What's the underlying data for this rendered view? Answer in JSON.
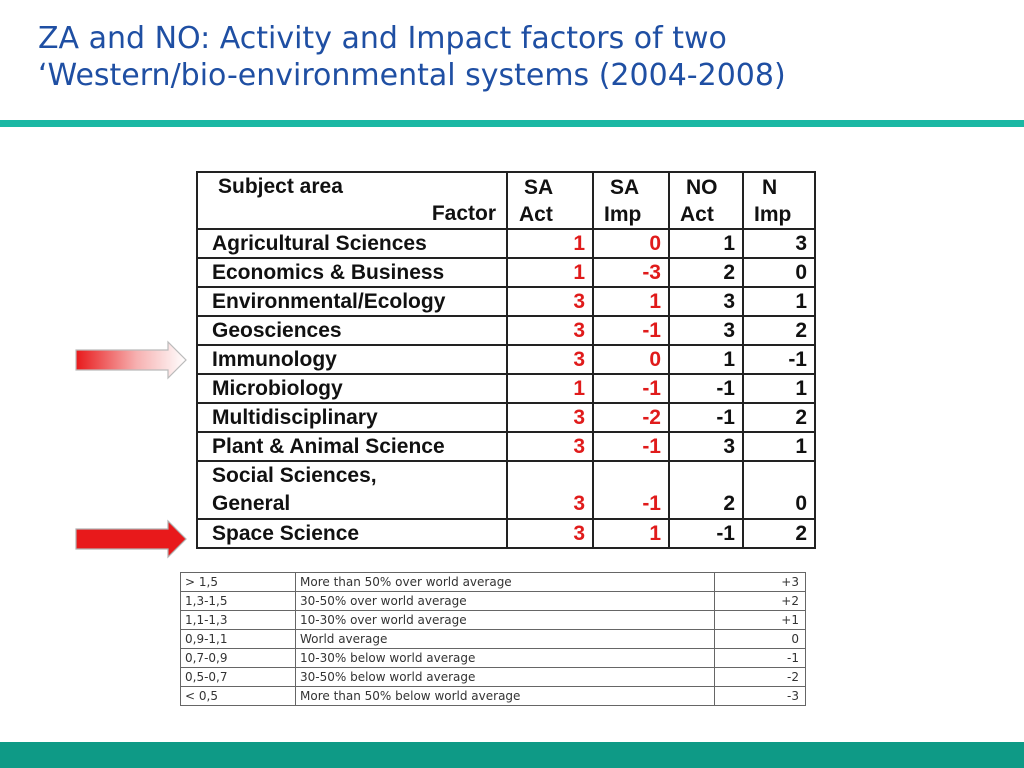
{
  "title": {
    "line1": "ZA and NO: Activity and Impact factors of two",
    "line2": "‘Western/bio-environmental systems (2004-2008)"
  },
  "colors": {
    "title": "#1f4fa3",
    "rule": "#1bb8a4",
    "band": "#0e9a86",
    "sa_values": "#e01b1b",
    "arrow": "#e8191b"
  },
  "main_table": {
    "header": {
      "subject_line1": "Subject area",
      "subject_line2": "Factor",
      "sa_act_line1": "SA",
      "sa_act_line2": "Act",
      "sa_imp_line1": "SA",
      "sa_imp_line2": "Imp",
      "no_act_line1": "NO",
      "no_act_line2": "Act",
      "n_imp_line1": "N",
      "n_imp_line2": "Imp"
    },
    "rows": [
      {
        "subject": "Agricultural Sciences",
        "sa_act": "1",
        "sa_imp": "0",
        "no_act": "1",
        "n_imp": "3"
      },
      {
        "subject": "Economics & Business",
        "sa_act": "1",
        "sa_imp": "-3",
        "no_act": "2",
        "n_imp": "0"
      },
      {
        "subject": "Environmental/Ecology",
        "sa_act": "3",
        "sa_imp": "1",
        "no_act": "3",
        "n_imp": "1"
      },
      {
        "subject": "Geosciences",
        "sa_act": "3",
        "sa_imp": "-1",
        "no_act": "3",
        "n_imp": "2"
      },
      {
        "subject": "Immunology",
        "sa_act": "3",
        "sa_imp": "0",
        "no_act": "1",
        "n_imp": "-1"
      },
      {
        "subject": "Microbiology",
        "sa_act": "1",
        "sa_imp": "-1",
        "no_act": "-1",
        "n_imp": "1"
      },
      {
        "subject": "Multidisciplinary",
        "sa_act": "3",
        "sa_imp": "-2",
        "no_act": "-1",
        "n_imp": "2"
      },
      {
        "subject": "Plant & Animal Science",
        "sa_act": "3",
        "sa_imp": "-1",
        "no_act": "3",
        "n_imp": "1"
      },
      {
        "subject_line1": "Social Sciences,",
        "subject_line2": "General",
        "sa_act": "3",
        "sa_imp": "-1",
        "no_act": "2",
        "n_imp": "0"
      },
      {
        "subject": "Space Science",
        "sa_act": "3",
        "sa_imp": "1",
        "no_act": "-1",
        "n_imp": "2"
      }
    ]
  },
  "arrows": [
    {
      "name": "faded-arrow",
      "points_to_row": "Immunology",
      "style": "gradient-faded"
    },
    {
      "name": "solid-arrow",
      "points_to_row": "Space Science",
      "style": "solid"
    }
  ],
  "legend": {
    "rows": [
      {
        "range": "> 1,5",
        "description": "More than 50% over world average",
        "score": "+3"
      },
      {
        "range": "1,3-1,5",
        "description": "30-50% over world average",
        "score": "+2"
      },
      {
        "range": "1,1-1,3",
        "description": "10-30% over world average",
        "score": "+1"
      },
      {
        "range": "0,9-1,1",
        "description": "World average",
        "score": "0"
      },
      {
        "range": "0,7-0,9",
        "description": "10-30% below world average",
        "score": "-1"
      },
      {
        "range": "0,5-0,7",
        "description": "30-50% below world average",
        "score": "-2"
      },
      {
        "range": "< 0,5",
        "description": "More than 50% below world average",
        "score": "-3"
      }
    ]
  }
}
